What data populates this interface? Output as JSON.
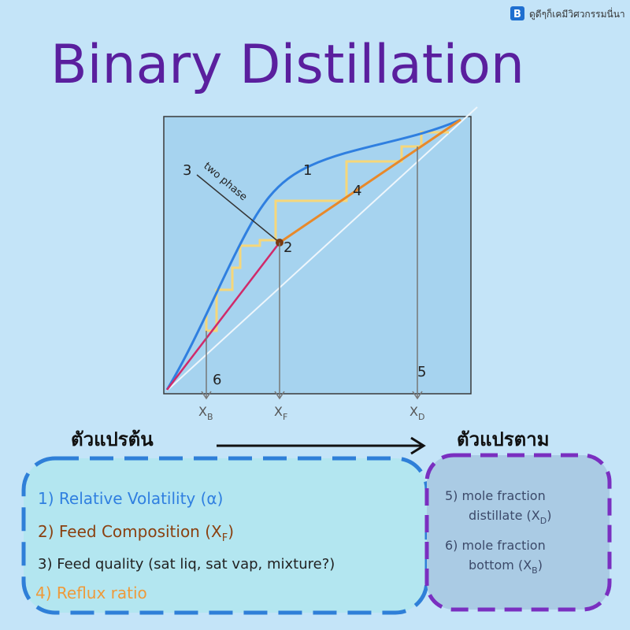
{
  "header": {
    "title": "Binary Distillation",
    "badge_icon": "B",
    "badge_text": "ดูดีๆก็เคมีวิศวกรรมนี่นา"
  },
  "diagram": {
    "labels": {
      "curve_1": "1",
      "feed_2": "2",
      "line_3": "3",
      "steps_4": "4",
      "arrow_5": "5",
      "arrow_6": "6",
      "two_phase": "two phase"
    },
    "axis": {
      "x_b": {
        "main": "X",
        "sub": "B"
      },
      "x_f": {
        "main": "X",
        "sub": "F"
      },
      "x_d": {
        "main": "X",
        "sub": "D"
      }
    }
  },
  "flow": {
    "independent": "ตัวแปรต้น",
    "dependent": "ตัวแปรตาม"
  },
  "inputs": [
    {
      "text": "1) Relative Volatility (α)"
    },
    {
      "text": "2) Feed Composition (X",
      "sub": "F",
      "tail": ")"
    },
    {
      "text": "3) Feed quality (sat liq, sat vap, mixture?)"
    },
    {
      "text": "4) Reflux ratio"
    }
  ],
  "outputs": [
    {
      "line1": "5) mole fraction",
      "line2": "distillate (X",
      "sub": "D",
      "tail": ")"
    },
    {
      "line1": "6) mole fraction",
      "line2": "bottom (X",
      "sub": "B",
      "tail": ")"
    }
  ]
}
